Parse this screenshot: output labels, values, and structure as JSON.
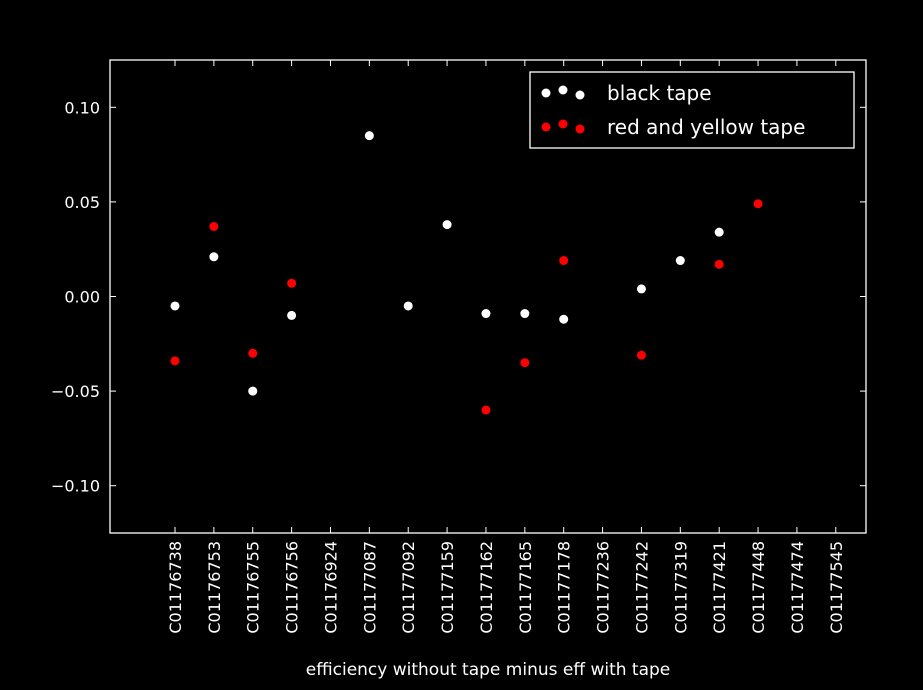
{
  "chart_data": {
    "type": "scatter",
    "title": "",
    "xlabel": "efficiency without tape minus eff with tape",
    "ylabel": "",
    "categories": [
      "C01176738",
      "C01176753",
      "C01176755",
      "C01176756",
      "C01176924",
      "C01177087",
      "C01177092",
      "C01177159",
      "C01177162",
      "C01177165",
      "C01177178",
      "C01177236",
      "C01177242",
      "C01177319",
      "C01177421",
      "C01177448",
      "C01177474",
      "C01177545"
    ],
    "ylim": [
      -0.125,
      0.125
    ],
    "yticks": [
      -0.1,
      -0.05,
      0.0,
      0.05,
      0.1
    ],
    "ytick_labels": [
      "−0.10",
      "−0.05",
      "0.00",
      "0.05",
      "0.10"
    ],
    "grid": false,
    "legend_position": "top-right",
    "series": [
      {
        "name": "black tape",
        "color": "#ffffff",
        "points": [
          {
            "x": "C01176738",
            "y": -0.005
          },
          {
            "x": "C01176753",
            "y": 0.021
          },
          {
            "x": "C01176755",
            "y": -0.05
          },
          {
            "x": "C01176756",
            "y": -0.01
          },
          {
            "x": "C01177087",
            "y": 0.085
          },
          {
            "x": "C01177092",
            "y": -0.005
          },
          {
            "x": "C01177159",
            "y": 0.038
          },
          {
            "x": "C01177162",
            "y": -0.009
          },
          {
            "x": "C01177165",
            "y": -0.009
          },
          {
            "x": "C01177178",
            "y": -0.012
          },
          {
            "x": "C01177242",
            "y": 0.004
          },
          {
            "x": "C01177319",
            "y": 0.019
          },
          {
            "x": "C01177421",
            "y": 0.034
          }
        ]
      },
      {
        "name": "red and yellow tape",
        "color": "#ff0000",
        "points": [
          {
            "x": "C01176738",
            "y": -0.034
          },
          {
            "x": "C01176753",
            "y": 0.037
          },
          {
            "x": "C01176755",
            "y": -0.03
          },
          {
            "x": "C01176756",
            "y": 0.007
          },
          {
            "x": "C01177162",
            "y": -0.06
          },
          {
            "x": "C01177165",
            "y": -0.035
          },
          {
            "x": "C01177178",
            "y": 0.019
          },
          {
            "x": "C01177242",
            "y": -0.031
          },
          {
            "x": "C01177421",
            "y": 0.017
          },
          {
            "x": "C01177448",
            "y": 0.049
          }
        ]
      }
    ]
  }
}
